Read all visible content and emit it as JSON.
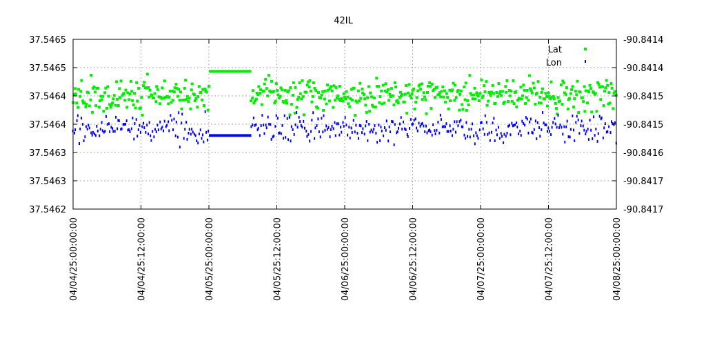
{
  "chart_data": {
    "type": "scatter",
    "title": "42IL",
    "xlabel": "",
    "ylabel": "",
    "y_left_ticks": [
      "37.5465",
      "37.5465",
      "37.5464",
      "37.5464",
      "37.5463",
      "37.5463",
      "37.5462"
    ],
    "y_right_ticks": [
      "-90.8414",
      "-90.8414",
      "-90.8415",
      "-90.8415",
      "-90.8416",
      "-90.8417",
      "-90.8417"
    ],
    "x_ticks": [
      "04/04/25:00:00:00",
      "04/04/25:12:00:00",
      "04/05/25:00:00:00",
      "04/05/25:12:00:00",
      "04/06/25:00:00:00",
      "04/06/25:12:00:00",
      "04/07/25:00:00:00",
      "04/07/25:12:00:00",
      "04/08/25:00:00:00"
    ],
    "x_range_hours": [
      0,
      96
    ],
    "y_range_index": [
      0,
      6
    ],
    "grid": true,
    "legend_position": "top-right",
    "series": [
      {
        "name": "Lat",
        "color": "#00ee00",
        "axis": "left",
        "flat_segment": {
          "x_start_hours": 0,
          "x_end_hours": 7.5,
          "x_offset_hours": 24,
          "y_index": 4.87
        },
        "band": {
          "y_center_index": 4.0,
          "y_spread": 0.85
        }
      },
      {
        "name": "Lon",
        "color": "#0000ff",
        "axis": "right",
        "flat_segment": {
          "x_start_hours": 0,
          "x_end_hours": 7.5,
          "x_offset_hours": 24,
          "y_index": 2.6
        },
        "band": {
          "y_center_index": 2.85,
          "y_spread": 0.75
        }
      }
    ]
  }
}
